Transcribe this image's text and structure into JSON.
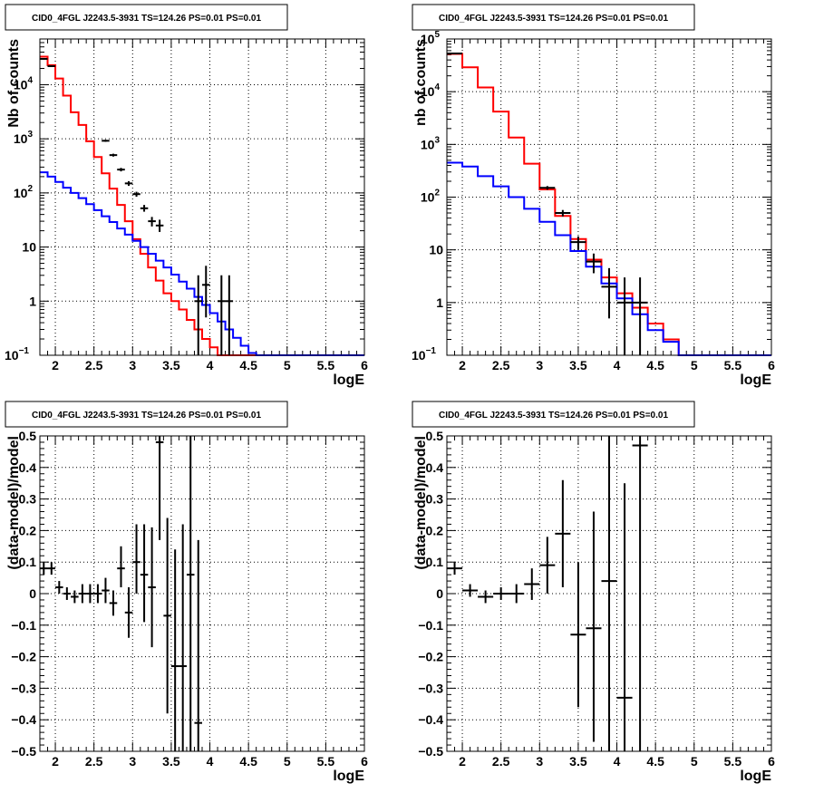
{
  "chart_data": [
    {
      "type": "line",
      "title": "CID0_4FGL J2243.5-3931 TS=124.26 PS=0.01 PS=0.01",
      "xlabel": "logE",
      "ylabel": "Nb of counts",
      "xlim": [
        1.8,
        6.0
      ],
      "ylim": [
        0.1,
        70000
      ],
      "log_y": true,
      "grid": true,
      "xticks": [
        "2",
        "2.5",
        "3",
        "3.5",
        "4",
        "4.5",
        "5",
        "5.5",
        "6"
      ],
      "yticks": [
        {
          "v": 0.1,
          "t": "10",
          "sup": "−1"
        },
        {
          "v": 1,
          "t": "1"
        },
        {
          "v": 10,
          "t": "10"
        },
        {
          "v": 100,
          "t": "10",
          "sup": "2"
        },
        {
          "v": 1000,
          "t": "10",
          "sup": "3"
        },
        {
          "v": 10000,
          "t": "10",
          "sup": "4"
        }
      ],
      "series": [
        {
          "color": "#ff0000",
          "style": "step",
          "edges": [
            1.8,
            1.9,
            2.0,
            2.1,
            2.2,
            2.3,
            2.4,
            2.5,
            2.6,
            2.7,
            2.8,
            2.9,
            3.0,
            3.1,
            3.2,
            3.3,
            3.4,
            3.5,
            3.6,
            3.7,
            3.8,
            3.9,
            4.0,
            4.1,
            4.2,
            4.3,
            4.4,
            4.5,
            4.6,
            4.7,
            4.8,
            4.9,
            5.0,
            5.1,
            5.2,
            5.3,
            5.4,
            5.5,
            5.6,
            5.7,
            5.8,
            5.9,
            6.0
          ],
          "values": [
            33000,
            23000,
            13000,
            6300,
            3100,
            1800,
            900,
            460,
            230,
            120,
            60,
            30,
            14,
            7.5,
            4.2,
            2.4,
            1.4,
            1.0,
            0.7,
            0.45,
            0.3,
            0.2,
            0.14,
            0.1,
            0.1,
            0.1,
            0.1,
            0.1,
            0.1,
            0.1,
            0.1,
            0.1,
            0.1,
            0.1,
            0.1,
            0.1,
            0.1,
            0.1,
            0.1,
            0.1,
            0.1,
            0.1
          ]
        },
        {
          "color": "#0000ff",
          "style": "step",
          "edges": [
            1.8,
            1.9,
            2.0,
            2.1,
            2.2,
            2.3,
            2.4,
            2.5,
            2.6,
            2.7,
            2.8,
            2.9,
            3.0,
            3.1,
            3.2,
            3.3,
            3.4,
            3.5,
            3.6,
            3.7,
            3.8,
            3.9,
            4.0,
            4.1,
            4.2,
            4.3,
            4.4,
            4.5,
            4.6,
            4.7,
            4.8,
            4.9,
            5.0,
            5.1,
            5.2,
            5.3,
            5.4,
            5.5,
            5.6,
            5.7,
            5.8,
            5.9,
            6.0
          ],
          "values": [
            240,
            200,
            160,
            125,
            100,
            80,
            62,
            48,
            37,
            29,
            22,
            17,
            13,
            10,
            7.5,
            5.6,
            4.2,
            3.1,
            2.3,
            1.7,
            1.2,
            0.85,
            0.6,
            0.42,
            0.3,
            0.21,
            0.15,
            0.11,
            0.1,
            0.1,
            0.1,
            0.1,
            0.1,
            0.1,
            0.1,
            0.1,
            0.1,
            0.1,
            0.1,
            0.1,
            0.1,
            0.1
          ]
        }
      ],
      "points": [
        {
          "x": 1.85,
          "xerr": 0.05,
          "y": 30000,
          "ylo": 29000,
          "yhi": 31000
        },
        {
          "x": 1.95,
          "xerr": 0.05,
          "y": 22000,
          "ylo": 21500,
          "yhi": 22500
        },
        {
          "x": 2.65,
          "xerr": 0.05,
          "y": 920,
          "ylo": 880,
          "yhi": 960
        },
        {
          "x": 2.75,
          "xerr": 0.05,
          "y": 500,
          "ylo": 470,
          "yhi": 530
        },
        {
          "x": 2.85,
          "xerr": 0.05,
          "y": 270,
          "ylo": 250,
          "yhi": 290
        },
        {
          "x": 2.95,
          "xerr": 0.05,
          "y": 150,
          "ylo": 135,
          "yhi": 165
        },
        {
          "x": 3.05,
          "xerr": 0.05,
          "y": 95,
          "ylo": 85,
          "yhi": 105
        },
        {
          "x": 3.15,
          "xerr": 0.05,
          "y": 52,
          "ylo": 45,
          "yhi": 60
        },
        {
          "x": 3.25,
          "xerr": 0.05,
          "y": 30,
          "ylo": 24,
          "yhi": 36
        },
        {
          "x": 3.35,
          "xerr": 0.05,
          "y": 25,
          "ylo": 19,
          "yhi": 32
        },
        {
          "x": 3.85,
          "xerr": 0.05,
          "y": 1,
          "ylo": 0.1,
          "yhi": 3
        },
        {
          "x": 3.95,
          "xerr": 0.05,
          "y": 2,
          "ylo": 0.5,
          "yhi": 4.5
        },
        {
          "x": 4.15,
          "xerr": 0.05,
          "y": 1,
          "ylo": 0.1,
          "yhi": 3
        },
        {
          "x": 4.25,
          "xerr": 0.05,
          "y": 1,
          "ylo": 0.1,
          "yhi": 3
        }
      ]
    },
    {
      "type": "line",
      "title": "CID0_4FGL J2243.5-3931 TS=124.26 PS=0.01 PS=0.01",
      "xlabel": "logE",
      "ylabel": "nb of counts",
      "xlim": [
        1.8,
        6.0
      ],
      "ylim": [
        0.1,
        100000
      ],
      "log_y": true,
      "grid": true,
      "xticks": [
        "2",
        "2.5",
        "3",
        "3.5",
        "4",
        "4.5",
        "5",
        "5.5",
        "6"
      ],
      "yticks": [
        {
          "v": 0.1,
          "t": "10",
          "sup": "−1"
        },
        {
          "v": 1,
          "t": "1"
        },
        {
          "v": 10,
          "t": "10"
        },
        {
          "v": 100,
          "t": "10",
          "sup": "2"
        },
        {
          "v": 1000,
          "t": "10",
          "sup": "3"
        },
        {
          "v": 10000,
          "t": "10",
          "sup": "4"
        },
        {
          "v": 100000,
          "t": "10",
          "sup": "5"
        }
      ],
      "series": [
        {
          "color": "#ff0000",
          "style": "step",
          "edges": [
            1.8,
            2.0,
            2.2,
            2.4,
            2.6,
            2.8,
            3.0,
            3.2,
            3.4,
            3.6,
            3.8,
            4.0,
            4.2,
            4.4,
            4.6,
            4.8,
            5.0,
            5.2,
            5.4,
            5.6,
            5.8,
            6.0
          ],
          "values": [
            52000,
            29000,
            12000,
            4200,
            1350,
            430,
            140,
            44,
            16,
            6.5,
            3.0,
            1.5,
            0.8,
            0.4,
            0.2,
            0.1,
            0.1,
            0.1,
            0.1,
            0.1,
            0.1
          ]
        },
        {
          "color": "#0000ff",
          "style": "step",
          "edges": [
            1.8,
            2.0,
            2.2,
            2.4,
            2.6,
            2.8,
            3.0,
            3.2,
            3.4,
            3.6,
            3.8,
            4.0,
            4.2,
            4.4,
            4.6,
            4.8,
            5.0,
            5.2,
            5.4,
            5.6,
            5.8,
            6.0
          ],
          "values": [
            450,
            380,
            250,
            160,
            100,
            60,
            34,
            19,
            9.5,
            4.8,
            2.3,
            1.2,
            0.6,
            0.3,
            0.18,
            0.1,
            0.1,
            0.1,
            0.1,
            0.1,
            0.1
          ]
        }
      ],
      "points": [
        {
          "x": 1.9,
          "xerr": 0.1,
          "y": 53000,
          "ylo": 51000,
          "yhi": 55000
        },
        {
          "x": 3.1,
          "xerr": 0.1,
          "y": 150,
          "ylo": 138,
          "yhi": 162
        },
        {
          "x": 3.3,
          "xerr": 0.1,
          "y": 50,
          "ylo": 43,
          "yhi": 57
        },
        {
          "x": 3.5,
          "xerr": 0.1,
          "y": 14,
          "ylo": 10,
          "yhi": 18
        },
        {
          "x": 3.7,
          "xerr": 0.1,
          "y": 6,
          "ylo": 3.6,
          "yhi": 8.5
        },
        {
          "x": 3.9,
          "xerr": 0.1,
          "y": 2,
          "ylo": 0.5,
          "yhi": 4.5
        },
        {
          "x": 4.1,
          "xerr": 0.1,
          "y": 1,
          "ylo": 0.1,
          "yhi": 3
        },
        {
          "x": 4.3,
          "xerr": 0.1,
          "y": 1,
          "ylo": 0.1,
          "yhi": 3
        }
      ]
    },
    {
      "type": "scatter",
      "title": "CID0_4FGL J2243.5-3931 TS=124.26 PS=0.01 PS=0.01",
      "xlabel": "logE",
      "ylabel": "(data-model)/model",
      "xlim": [
        1.8,
        6.0
      ],
      "ylim": [
        -0.5,
        0.5
      ],
      "log_y": false,
      "grid": true,
      "xticks": [
        "2",
        "2.5",
        "3",
        "3.5",
        "4",
        "4.5",
        "5",
        "5.5",
        "6"
      ],
      "yticks": [
        {
          "v": -0.5,
          "t": "−0.5"
        },
        {
          "v": -0.4,
          "t": "−0.4"
        },
        {
          "v": -0.3,
          "t": "−0.3"
        },
        {
          "v": -0.2,
          "t": "−0.2"
        },
        {
          "v": -0.1,
          "t": "−0.1"
        },
        {
          "v": 0,
          "t": "0"
        },
        {
          "v": 0.1,
          "t": "0.1"
        },
        {
          "v": 0.2,
          "t": "0.2"
        },
        {
          "v": 0.3,
          "t": "0.3"
        },
        {
          "v": 0.4,
          "t": "0.4"
        },
        {
          "v": 0.5,
          "t": "0.5"
        }
      ],
      "points": [
        {
          "x": 1.85,
          "xerr": 0.05,
          "y": 0.08,
          "ylo": 0.06,
          "yhi": 0.1
        },
        {
          "x": 1.95,
          "xerr": 0.05,
          "y": 0.08,
          "ylo": 0.06,
          "yhi": 0.1
        },
        {
          "x": 2.05,
          "xerr": 0.05,
          "y": 0.02,
          "ylo": 0.0,
          "yhi": 0.04
        },
        {
          "x": 2.15,
          "xerr": 0.05,
          "y": 0.0,
          "ylo": -0.02,
          "yhi": 0.02
        },
        {
          "x": 2.25,
          "xerr": 0.05,
          "y": -0.01,
          "ylo": -0.03,
          "yhi": 0.01
        },
        {
          "x": 2.35,
          "xerr": 0.05,
          "y": 0.0,
          "ylo": -0.03,
          "yhi": 0.03
        },
        {
          "x": 2.45,
          "xerr": 0.05,
          "y": 0.0,
          "ylo": -0.03,
          "yhi": 0.03
        },
        {
          "x": 2.55,
          "xerr": 0.05,
          "y": 0.0,
          "ylo": -0.03,
          "yhi": 0.03
        },
        {
          "x": 2.65,
          "xerr": 0.05,
          "y": 0.01,
          "ylo": -0.03,
          "yhi": 0.05
        },
        {
          "x": 2.75,
          "xerr": 0.05,
          "y": -0.03,
          "ylo": -0.07,
          "yhi": 0.01
        },
        {
          "x": 2.85,
          "xerr": 0.05,
          "y": 0.08,
          "ylo": 0.02,
          "yhi": 0.15
        },
        {
          "x": 2.95,
          "xerr": 0.05,
          "y": -0.06,
          "ylo": -0.14,
          "yhi": 0.02
        },
        {
          "x": 3.05,
          "xerr": 0.05,
          "y": 0.1,
          "ylo": 0.0,
          "yhi": 0.22
        },
        {
          "x": 3.15,
          "xerr": 0.05,
          "y": 0.06,
          "ylo": -0.09,
          "yhi": 0.22
        },
        {
          "x": 3.25,
          "xerr": 0.05,
          "y": 0.02,
          "ylo": -0.17,
          "yhi": 0.21
        },
        {
          "x": 3.35,
          "xerr": 0.05,
          "y": 0.48,
          "ylo": 0.17,
          "yhi": 0.5
        },
        {
          "x": 3.45,
          "xerr": 0.05,
          "y": -0.07,
          "ylo": -0.38,
          "yhi": 0.24
        },
        {
          "x": 3.55,
          "xerr": 0.05,
          "y": -0.23,
          "ylo": -0.5,
          "yhi": 0.14
        },
        {
          "x": 3.65,
          "xerr": 0.05,
          "y": -0.23,
          "ylo": -0.5,
          "yhi": 0.22
        },
        {
          "x": 3.75,
          "xerr": 0.05,
          "y": 0.06,
          "ylo": -0.5,
          "yhi": 0.5
        },
        {
          "x": 3.85,
          "xerr": 0.05,
          "y": -0.41,
          "ylo": -0.5,
          "yhi": 0.17
        }
      ]
    },
    {
      "type": "scatter",
      "title": "CID0_4FGL J2243.5-3931 TS=124.26 PS=0.01 PS=0.01",
      "xlabel": "logE",
      "ylabel": "(data-model)/model",
      "xlim": [
        1.8,
        6.0
      ],
      "ylim": [
        -0.5,
        0.5
      ],
      "log_y": false,
      "grid": true,
      "xticks": [
        "2",
        "2.5",
        "3",
        "3.5",
        "4",
        "4.5",
        "5",
        "5.5",
        "6"
      ],
      "yticks": [
        {
          "v": -0.5,
          "t": "−0.5"
        },
        {
          "v": -0.4,
          "t": "−0.4"
        },
        {
          "v": -0.3,
          "t": "−0.3"
        },
        {
          "v": -0.2,
          "t": "−0.2"
        },
        {
          "v": -0.1,
          "t": "−0.1"
        },
        {
          "v": 0,
          "t": "0"
        },
        {
          "v": 0.1,
          "t": "0.1"
        },
        {
          "v": 0.2,
          "t": "0.2"
        },
        {
          "v": 0.3,
          "t": "0.3"
        },
        {
          "v": 0.4,
          "t": "0.4"
        },
        {
          "v": 0.5,
          "t": "0.5"
        }
      ],
      "points": [
        {
          "x": 1.9,
          "xerr": 0.1,
          "y": 0.08,
          "ylo": 0.06,
          "yhi": 0.1
        },
        {
          "x": 2.1,
          "xerr": 0.1,
          "y": 0.01,
          "ylo": -0.01,
          "yhi": 0.03
        },
        {
          "x": 2.3,
          "xerr": 0.1,
          "y": -0.01,
          "ylo": -0.03,
          "yhi": 0.01
        },
        {
          "x": 2.5,
          "xerr": 0.1,
          "y": 0.0,
          "ylo": -0.02,
          "yhi": 0.02
        },
        {
          "x": 2.7,
          "xerr": 0.1,
          "y": 0.0,
          "ylo": -0.03,
          "yhi": 0.03
        },
        {
          "x": 2.9,
          "xerr": 0.1,
          "y": 0.03,
          "ylo": -0.02,
          "yhi": 0.08
        },
        {
          "x": 3.1,
          "xerr": 0.1,
          "y": 0.09,
          "ylo": 0.0,
          "yhi": 0.18
        },
        {
          "x": 3.3,
          "xerr": 0.1,
          "y": 0.19,
          "ylo": 0.02,
          "yhi": 0.36
        },
        {
          "x": 3.5,
          "xerr": 0.1,
          "y": -0.13,
          "ylo": -0.36,
          "yhi": 0.1
        },
        {
          "x": 3.7,
          "xerr": 0.1,
          "y": -0.11,
          "ylo": -0.47,
          "yhi": 0.26
        },
        {
          "x": 3.9,
          "xerr": 0.1,
          "y": 0.04,
          "ylo": -0.5,
          "yhi": 0.5
        },
        {
          "x": 4.1,
          "xerr": 0.1,
          "y": -0.33,
          "ylo": -0.5,
          "yhi": 0.35
        },
        {
          "x": 4.3,
          "xerr": 0.1,
          "y": 0.47,
          "ylo": -0.5,
          "yhi": 0.5
        }
      ]
    }
  ]
}
